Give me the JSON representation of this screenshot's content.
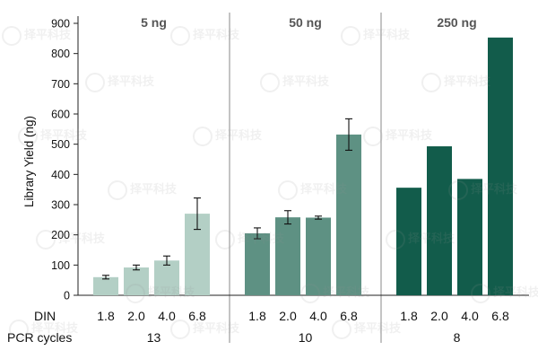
{
  "chart_data": {
    "type": "bar",
    "ylabel": "Library Yield (ng)",
    "ylim": [
      0,
      900
    ],
    "yticks": [
      0,
      100,
      200,
      300,
      400,
      500,
      600,
      700,
      800,
      900
    ],
    "row_labels": {
      "din": "DIN",
      "pcr": "PCR cycles"
    },
    "panels": [
      {
        "title": "5 ng",
        "pcr_cycles": "13",
        "color": "#b3cfc5",
        "categories": [
          "1.8",
          "2.0",
          "4.0",
          "6.8"
        ],
        "values": [
          60,
          92,
          115,
          270
        ],
        "errors": [
          6,
          8,
          15,
          52
        ]
      },
      {
        "title": "50 ng",
        "pcr_cycles": "10",
        "color": "#5e9183",
        "categories": [
          "1.8",
          "2.0",
          "4.0",
          "6.8"
        ],
        "values": [
          205,
          258,
          257,
          532
        ],
        "errors": [
          18,
          22,
          5,
          52
        ]
      },
      {
        "title": "250 ng",
        "pcr_cycles": "8",
        "color": "#125c4b",
        "categories": [
          "1.8",
          "2.0",
          "4.0",
          "6.8"
        ],
        "values": [
          356,
          493,
          385,
          853
        ],
        "errors": [
          null,
          null,
          null,
          null
        ]
      }
    ]
  },
  "watermark": {
    "text": "择平科技"
  }
}
